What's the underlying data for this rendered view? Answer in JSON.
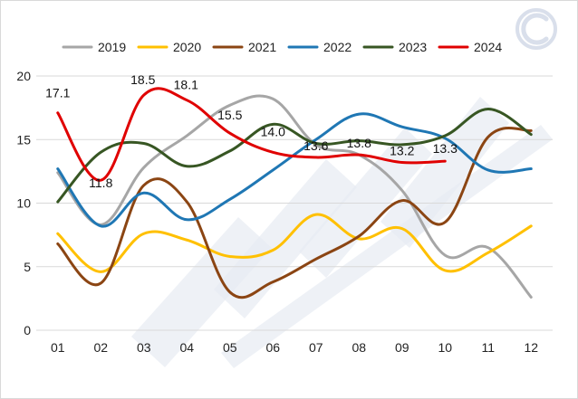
{
  "chart_data": {
    "type": "line",
    "title": "",
    "xlabel": "",
    "ylabel": "",
    "categories": [
      "01",
      "02",
      "03",
      "04",
      "05",
      "06",
      "07",
      "08",
      "09",
      "10",
      "11",
      "12"
    ],
    "ylim": [
      0,
      20
    ],
    "yticks": [
      0,
      5,
      10,
      15,
      20
    ],
    "grid": true,
    "legend_position": "top",
    "series": [
      {
        "name": "2019",
        "color": "#a6a6a6",
        "values": [
          12.4,
          8.3,
          12.8,
          15.3,
          17.7,
          18.2,
          14.6,
          13.8,
          11.0,
          5.9,
          6.5,
          2.6
        ]
      },
      {
        "name": "2020",
        "color": "#ffc000",
        "values": [
          7.6,
          4.6,
          7.6,
          7.1,
          5.8,
          6.3,
          9.1,
          7.2,
          8.0,
          4.7,
          6.1,
          8.2
        ]
      },
      {
        "name": "2021",
        "color": "#8b4513",
        "values": [
          6.8,
          3.7,
          11.4,
          10.1,
          3.0,
          3.8,
          5.6,
          7.4,
          10.2,
          8.5,
          15.2,
          15.7
        ]
      },
      {
        "name": "2022",
        "color": "#1f77b4",
        "values": [
          12.7,
          8.2,
          10.8,
          8.7,
          10.3,
          12.6,
          15.0,
          17.0,
          16.0,
          15.1,
          12.6,
          12.7
        ]
      },
      {
        "name": "2023",
        "color": "#375623",
        "values": [
          10.1,
          14.0,
          14.7,
          12.9,
          14.1,
          16.2,
          14.7,
          14.9,
          14.6,
          15.3,
          17.4,
          15.4
        ]
      },
      {
        "name": "2024",
        "color": "#e00000",
        "values": [
          17.1,
          11.8,
          18.5,
          18.1,
          15.5,
          14.0,
          13.6,
          13.8,
          13.2,
          13.3,
          null,
          null
        ],
        "data_labels": [
          "17.1",
          "11.8",
          "18.5",
          "18.1",
          "15.5",
          "14.0",
          "13.6",
          "13.8",
          "13.2",
          "13.3"
        ]
      }
    ]
  }
}
